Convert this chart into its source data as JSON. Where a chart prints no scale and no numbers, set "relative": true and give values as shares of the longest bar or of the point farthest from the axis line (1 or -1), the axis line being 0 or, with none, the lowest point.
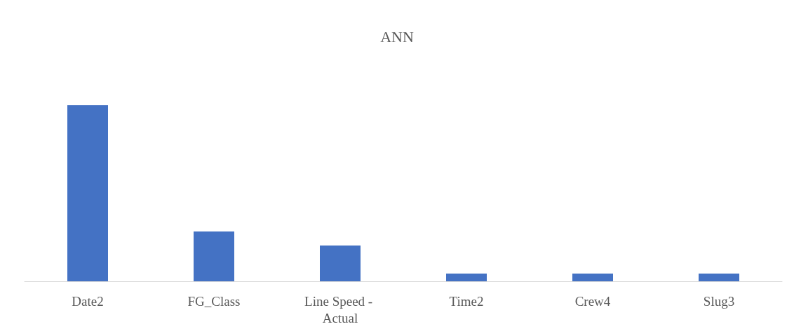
{
  "chart_data": {
    "type": "bar",
    "title": "ANN",
    "relative": true,
    "color": "#4472c4",
    "categories": [
      "Date2",
      "FG_Class",
      "Line Speed - Actual",
      "Time2",
      "Crew4",
      "Slug3"
    ],
    "values": [
      1,
      0.283,
      0.203,
      0.044,
      0.044,
      0.044
    ]
  }
}
